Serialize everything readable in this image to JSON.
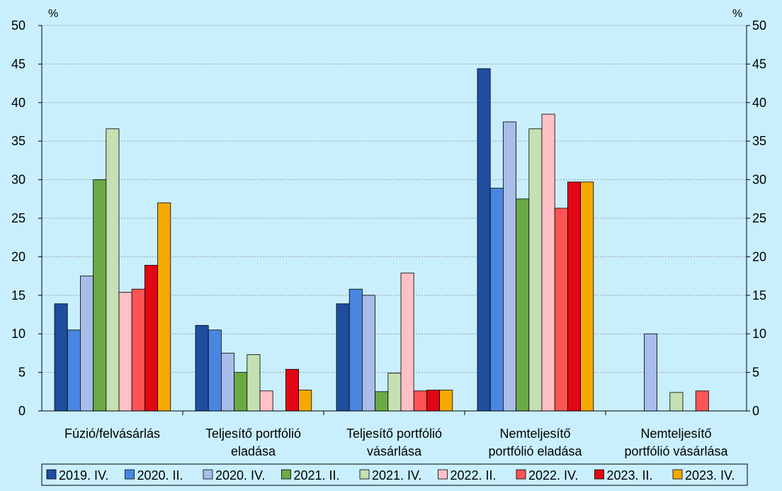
{
  "chart_data": {
    "type": "bar",
    "categories": [
      "Fúzió/felvásárlás",
      "Teljesítő portfólió eladása",
      "Teljesítő portfólió vásárlása",
      "Nemteljesítő portfólió eladása",
      "Nemteljesítő portfólió vásárlása"
    ],
    "category_lines": [
      [
        "Fúzió/felvásárlás"
      ],
      [
        "Teljesítő portfólió",
        "eladása"
      ],
      [
        "Teljesítő portfólió",
        "vásárlása"
      ],
      [
        "Nemteljesítő",
        "portfólió eladása"
      ],
      [
        "Nemteljesítő",
        "portfólió vásárlása"
      ]
    ],
    "series": [
      {
        "name": "2019. IV.",
        "color": "#1f4e9f",
        "values": [
          13.9,
          11.1,
          13.9,
          44.4,
          0
        ]
      },
      {
        "name": "2020. II.",
        "color": "#4a86e0",
        "values": [
          10.5,
          10.5,
          15.8,
          28.9,
          0
        ]
      },
      {
        "name": "2020. IV.",
        "color": "#a8bde9",
        "values": [
          17.5,
          7.5,
          15.0,
          37.5,
          10.0
        ]
      },
      {
        "name": "2021. II.",
        "color": "#6aaa45",
        "values": [
          30.0,
          5.0,
          2.5,
          27.5,
          0
        ]
      },
      {
        "name": "2021. IV.",
        "color": "#c5e0b3",
        "values": [
          36.6,
          7.3,
          4.9,
          36.6,
          2.4
        ]
      },
      {
        "name": "2022. II.",
        "color": "#ffc0c6",
        "values": [
          15.4,
          2.6,
          17.9,
          38.5,
          0
        ]
      },
      {
        "name": "2022. IV.",
        "color": "#ff5454",
        "values": [
          15.8,
          0,
          2.6,
          26.3,
          2.6
        ]
      },
      {
        "name": "2023. II.",
        "color": "#e30613",
        "values": [
          18.9,
          5.4,
          2.7,
          29.7,
          0
        ]
      },
      {
        "name": "2023. IV.",
        "color": "#f5a800",
        "values": [
          27.0,
          2.7,
          2.7,
          29.7,
          0
        ]
      }
    ],
    "ylim": [
      0,
      50
    ],
    "yticks": [
      "0",
      "5",
      "10",
      "15",
      "20",
      "25",
      "30",
      "35",
      "40",
      "45",
      "50"
    ],
    "ylabel_left": "%",
    "ylabel_right": "%",
    "grid": true,
    "legend_position": "bottom"
  }
}
